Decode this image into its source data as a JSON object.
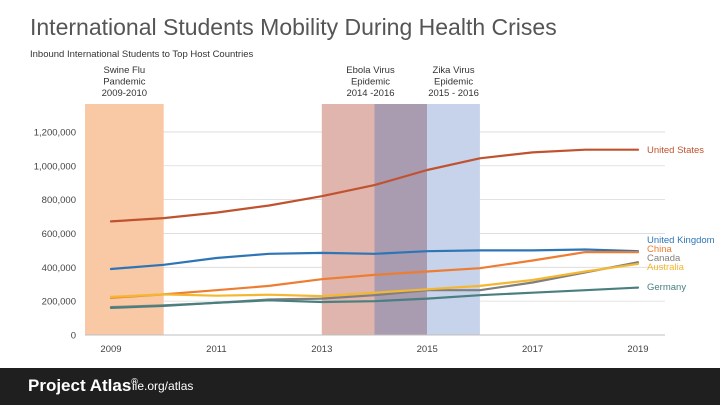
{
  "title": "International Students Mobility During Health Crises",
  "subtitle": "Inbound International Students to Top Host Countries",
  "footer": {
    "brand": "Project Atlas",
    "trademark": "®",
    "url": "iie.org/atlas"
  },
  "chart_data": {
    "type": "line",
    "x": [
      2009,
      2010,
      2011,
      2012,
      2013,
      2014,
      2015,
      2016,
      2017,
      2018,
      2019
    ],
    "xticks": [
      "2009",
      "2011",
      "2013",
      "2015",
      "2017",
      "2019"
    ],
    "yticks": [
      "0",
      "200,000",
      "400,000",
      "600,000",
      "800,000",
      "1,000,000",
      "1,200,000"
    ],
    "ylim": [
      0,
      1300000
    ],
    "grid": true,
    "series": [
      {
        "name": "United States",
        "color": "#c0532f",
        "values": [
          671000,
          691000,
          723000,
          765000,
          820000,
          886000,
          975000,
          1044000,
          1079000,
          1095000,
          1095000
        ]
      },
      {
        "name": "United Kingdom",
        "color": "#2e75b6",
        "values": [
          390000,
          415000,
          455000,
          480000,
          485000,
          480000,
          495000,
          500000,
          500000,
          505000,
          495000
        ]
      },
      {
        "name": "China",
        "color": "#ed7d31",
        "values": [
          220000,
          240000,
          265000,
          290000,
          330000,
          355000,
          375000,
          395000,
          440000,
          490000,
          490000
        ]
      },
      {
        "name": "Canada",
        "color": "#7f7f7f",
        "values": [
          165000,
          175000,
          190000,
          210000,
          215000,
          235000,
          265000,
          265000,
          310000,
          370000,
          430000
        ]
      },
      {
        "name": "Australia",
        "color": "#f4b731",
        "values": [
          225000,
          240000,
          232000,
          238000,
          230000,
          250000,
          270000,
          290000,
          325000,
          375000,
          420000
        ]
      },
      {
        "name": "Germany",
        "color": "#4a7f80",
        "values": [
          160000,
          172000,
          190000,
          205000,
          195000,
          200000,
          215000,
          235000,
          250000,
          265000,
          280000
        ]
      }
    ],
    "bands": [
      {
        "label": [
          "Swine Flu",
          "Pandemic",
          "2009-2010"
        ],
        "start": 2009,
        "end": 2010,
        "color": "#f9c8a4"
      },
      {
        "label": [
          "Ebola Virus",
          "Epidemic",
          "2014 -2016"
        ],
        "start": 2013,
        "end": 2014,
        "color": "#dfb5ad"
      },
      {
        "label": [],
        "start": 2014,
        "end": 2015,
        "color": "#a99bb0"
      },
      {
        "label": [
          "Zika Virus",
          "Epidemic",
          "2015 - 2016"
        ],
        "start": 2015,
        "end": 2016,
        "color": "#c6d3ea"
      }
    ]
  }
}
